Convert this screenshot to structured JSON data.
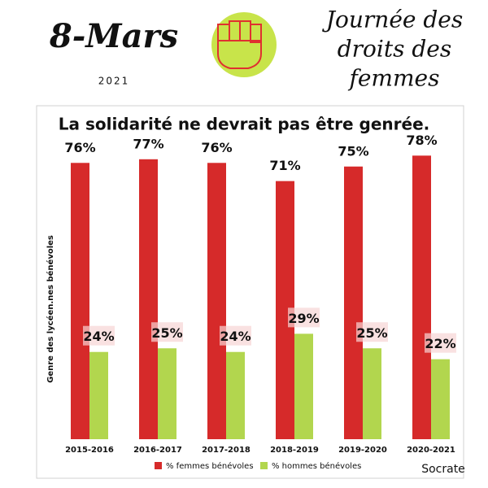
{
  "header": {
    "date": "8-Mars",
    "year": "2021",
    "slogan": [
      "Journée des",
      "droits des",
      "femmes"
    ]
  },
  "logo": {
    "name": "Socrate"
  },
  "chart_data": {
    "type": "bar",
    "title": "La solidarité ne devrait pas être genrée.",
    "y_label": "Genre des lycéen.nes bénévoles",
    "categories": [
      "2015-2016",
      "2016-2017",
      "2017-2018",
      "2018-2019",
      "2019-2020",
      "2020-2021"
    ],
    "series": [
      {
        "name": "% femmes bénévoles",
        "color": "#d62a2a",
        "values": [
          76,
          77,
          76,
          71,
          75,
          78
        ],
        "value_labels": [
          "76%",
          "77%",
          "76%",
          "71%",
          "75%",
          "78%"
        ]
      },
      {
        "name": "% hommes bénévoles",
        "color": "#b2d64e",
        "values": [
          24,
          25,
          24,
          29,
          25,
          22
        ],
        "value_labels": [
          "24%",
          "25%",
          "24%",
          "29%",
          "25%",
          "22%"
        ]
      }
    ],
    "ylim": [
      0,
      100
    ],
    "legend": "bottom"
  }
}
